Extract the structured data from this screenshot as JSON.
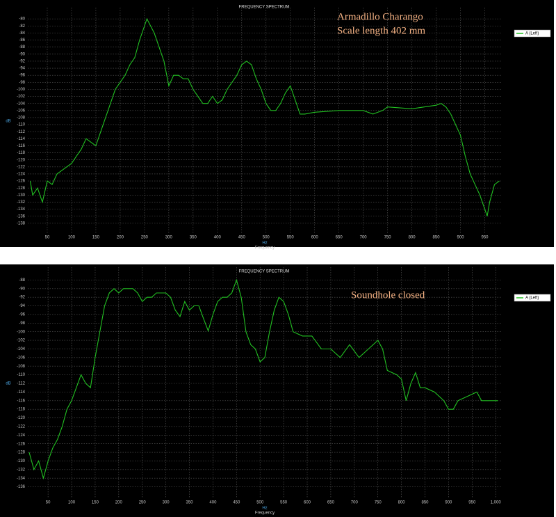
{
  "chart_data": [
    {
      "type": "line",
      "title": "FREQUENCY SPECTRUM",
      "x_label": "Frequency",
      "x_unit": "Hz",
      "y_label": "dB",
      "annotations": [
        "Armadillo Charango",
        "Scale length 402 mm"
      ],
      "grid": true,
      "xlim": [
        10,
        985
      ],
      "ylim": [
        -140,
        -78
      ],
      "xticks": [
        50,
        100,
        150,
        200,
        250,
        300,
        350,
        400,
        450,
        500,
        550,
        600,
        650,
        700,
        750,
        800,
        850,
        900,
        950
      ],
      "yticks": [
        -80,
        -82,
        -84,
        -86,
        -88,
        -90,
        -92,
        -94,
        -96,
        -98,
        -100,
        -102,
        -104,
        -106,
        -108,
        -110,
        -112,
        -114,
        -116,
        -118,
        -120,
        -122,
        -124,
        -126,
        -128,
        -130,
        -132,
        -134,
        -136,
        -138
      ],
      "x": [
        15,
        20,
        30,
        40,
        50,
        60,
        70,
        80,
        90,
        100,
        110,
        120,
        130,
        140,
        150,
        160,
        170,
        180,
        190,
        200,
        210,
        220,
        230,
        240,
        255,
        270,
        280,
        290,
        300,
        310,
        320,
        330,
        340,
        350,
        360,
        370,
        380,
        390,
        400,
        410,
        420,
        430,
        440,
        450,
        460,
        470,
        480,
        490,
        500,
        510,
        520,
        530,
        540,
        550,
        560,
        570,
        580,
        600,
        650,
        700,
        720,
        740,
        750,
        800,
        850,
        860,
        870,
        880,
        890,
        900,
        910,
        920,
        930,
        940,
        950,
        955,
        960,
        970,
        980
      ],
      "series": [
        {
          "name": "A (Left)",
          "color": "#22c022",
          "values": [
            -126,
            -130,
            -128,
            -132,
            -126,
            -127,
            -124,
            -123,
            -122,
            -121,
            -119,
            -117,
            -114,
            -115,
            -116,
            -112,
            -108,
            -104,
            -100,
            -98,
            -96,
            -93,
            -91,
            -86,
            -80,
            -84,
            -88,
            -92,
            -99,
            -96,
            -96,
            -97,
            -97,
            -100,
            -102,
            -104,
            -104,
            -102,
            -104,
            -103,
            -100,
            -98,
            -96,
            -93,
            -92,
            -93,
            -97,
            -100,
            -104,
            -106,
            -106,
            -104,
            -101,
            -99,
            -103,
            -107,
            -107,
            -106.5,
            -106,
            -106,
            -107,
            -106,
            -105,
            -105.5,
            -104.5,
            -104,
            -105,
            -107,
            -110,
            -113,
            -119,
            -124,
            -127,
            -130,
            -134,
            -136,
            -132,
            -127,
            -126
          ]
        }
      ]
    },
    {
      "type": "line",
      "title": "FREQUENCY SPECTRUM",
      "x_label": "Frequency",
      "x_unit": "Hz",
      "y_label": "dB",
      "annotations": [
        "Soundhole closed"
      ],
      "grid": true,
      "xlim": [
        7,
        1013
      ],
      "ylim": [
        -138,
        -86
      ],
      "xticks": [
        50,
        100,
        150,
        200,
        250,
        300,
        350,
        400,
        450,
        500,
        550,
        600,
        650,
        700,
        750,
        800,
        850,
        900,
        950,
        {
          "value": 1000,
          "label": "1,000"
        }
      ],
      "yticks": [
        -88,
        -90,
        -92,
        -94,
        -96,
        -98,
        -100,
        -102,
        -104,
        -106,
        -108,
        -110,
        -112,
        -114,
        -116,
        -118,
        -120,
        -122,
        -124,
        -126,
        -128,
        -130,
        -132,
        -134,
        -136
      ],
      "x": [
        10,
        20,
        30,
        40,
        50,
        60,
        70,
        80,
        90,
        100,
        110,
        120,
        130,
        140,
        150,
        160,
        170,
        180,
        190,
        200,
        210,
        220,
        230,
        240,
        250,
        260,
        270,
        280,
        300,
        310,
        320,
        330,
        340,
        350,
        360,
        370,
        380,
        390,
        400,
        410,
        420,
        430,
        440,
        450,
        460,
        470,
        480,
        490,
        500,
        510,
        520,
        530,
        540,
        550,
        560,
        570,
        590,
        610,
        630,
        650,
        670,
        690,
        710,
        730,
        750,
        760,
        770,
        790,
        800,
        810,
        820,
        830,
        840,
        850,
        870,
        890,
        900,
        910,
        920,
        940,
        960,
        970,
        990,
        1005
      ],
      "series": [
        {
          "name": "A (Left)",
          "color": "#22c022",
          "values": [
            -128,
            -132,
            -130,
            -134,
            -130,
            -127,
            -125,
            -122,
            -118,
            -116,
            -113,
            -110,
            -112,
            -113,
            -106,
            -100,
            -94,
            -91,
            -90,
            -91,
            -90,
            -90,
            -90,
            -91,
            -93,
            -92,
            -92,
            -91,
            -91,
            -92,
            -95,
            -96.5,
            -93,
            -95,
            -94,
            -94,
            -97,
            -99.8,
            -96,
            -93,
            -92,
            -92,
            -91,
            -88,
            -92,
            -100,
            -103,
            -104,
            -107,
            -106,
            -100,
            -95,
            -92,
            -93,
            -96,
            -100,
            -101,
            -101,
            -104,
            -104,
            -106,
            -103,
            -106,
            -104,
            -102,
            -104,
            -109,
            -110,
            -111,
            -116,
            -112,
            -109.5,
            -113,
            -113,
            -114,
            -116,
            -118,
            -118,
            -116,
            -115,
            -114,
            -116,
            -116,
            -116
          ]
        }
      ]
    }
  ]
}
